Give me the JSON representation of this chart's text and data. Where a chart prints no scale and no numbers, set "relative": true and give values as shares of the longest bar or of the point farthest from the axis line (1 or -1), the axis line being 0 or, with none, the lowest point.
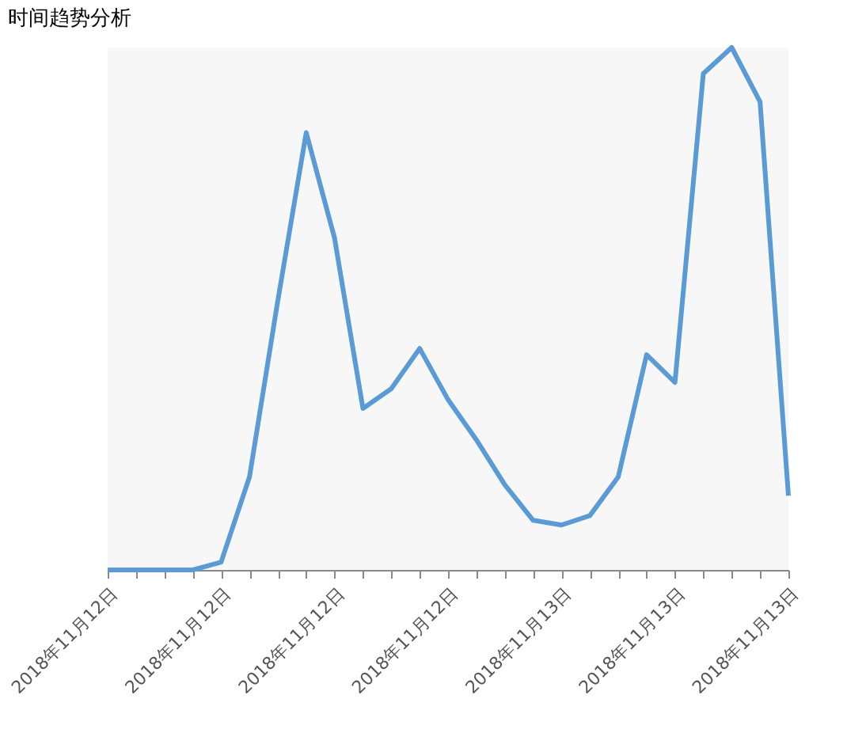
{
  "chart_data": {
    "type": "line",
    "title": "时间趋势分析",
    "relative": true,
    "categories": [
      "2018年11月12日",
      null,
      null,
      null,
      "2018年11月12日",
      null,
      null,
      null,
      "2018年11月12日",
      null,
      null,
      null,
      "2018年11月12日",
      null,
      null,
      null,
      "2018年11月13日",
      null,
      null,
      null,
      "2018年11月13日",
      null,
      null,
      null,
      "2018年11月13日"
    ],
    "series": [
      {
        "color": "#5b9bd5",
        "values": [
          0,
          0,
          0,
          0,
          0.015,
          0.178,
          0.516,
          0.837,
          0.635,
          0.309,
          0.347,
          0.424,
          0.326,
          0.249,
          0.163,
          0.095,
          0.086,
          0.104,
          0.178,
          0.412,
          0.359,
          0.95,
          1,
          0.896,
          0.142
        ]
      }
    ],
    "marker": "none"
  }
}
